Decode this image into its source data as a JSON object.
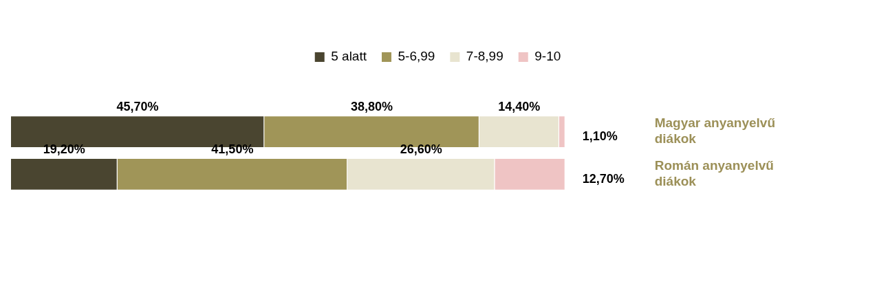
{
  "chart_data": {
    "type": "bar",
    "orientation": "horizontal",
    "stacked": true,
    "categories": [
      "Magyar anyanyelvű diákok",
      "Román anyanyelvű diákok"
    ],
    "series": [
      {
        "name": "5 alatt",
        "color": "#4a4530",
        "values": [
          45.7,
          19.2
        ],
        "value_labels": [
          "45,70%",
          "19,20%"
        ]
      },
      {
        "name": "5-6,99",
        "color": "#a09558",
        "values": [
          38.8,
          41.5
        ],
        "value_labels": [
          "38,80%",
          "41,50%"
        ]
      },
      {
        "name": "7-8,99",
        "color": "#e8e4d0",
        "values": [
          14.4,
          26.6
        ],
        "value_labels": [
          "14,40%",
          "26,60%"
        ]
      },
      {
        "name": "9-10",
        "color": "#efc4c4",
        "values": [
          1.1,
          12.7
        ],
        "value_labels": [
          "1,10%",
          "12,70%"
        ]
      }
    ],
    "xlim": [
      0,
      100
    ],
    "tick_labels": "y",
    "legend": "top"
  }
}
